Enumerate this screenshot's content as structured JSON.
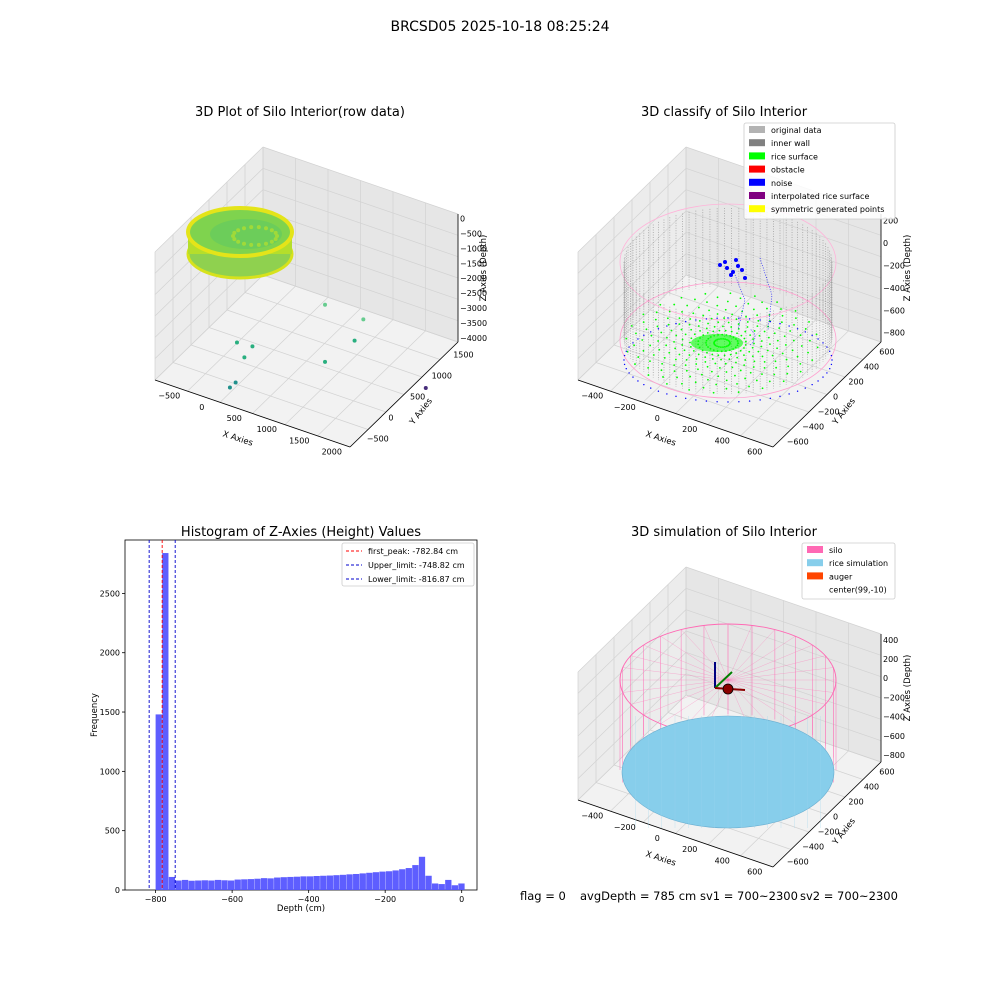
{
  "figure": {
    "suptitle": "BRCSD05 2025-10-18 08:25:24",
    "footer": {
      "flag": "flag = 0",
      "avg_depth": "avgDepth = 785 cm",
      "sv1": "sv1 = 700~2300",
      "sv2": "sv2 = 700~2300"
    }
  },
  "colors": {
    "original_data": "#b3b3b3",
    "inner_wall": "#808080",
    "rice_surface": "#00ff00",
    "obstacle": "#ff0000",
    "noise": "#0000ff",
    "interpolated_rice_surface": "#800080",
    "symmetric_generated_points": "#ffff00",
    "silo": "#ff69b4",
    "rice_simulation": "#87ceeb",
    "auger": "#ff4500",
    "hist_bar": "#5555ff",
    "first_peak_line": "#ff0000",
    "limit_line": "#0000cc",
    "viridis_low": "#3b528b",
    "viridis_mid": "#21918c",
    "viridis_high": "#fde725"
  },
  "chart_data": [
    {
      "type": "scatter",
      "projection": "3d",
      "title": "3D Plot of Silo Interior(row data)",
      "xlabel": "X Axies",
      "ylabel": "Y Axies",
      "zlabel": "Z Axies (Depth)",
      "xticks": [
        "−500",
        "0",
        "500",
        "1000",
        "1500",
        "2000"
      ],
      "yticks": [
        "−500",
        "0",
        "500",
        "1000",
        "1500"
      ],
      "zticks": [
        "0",
        "−500",
        "−1000",
        "−1500",
        "−2000",
        "−2500",
        "−3000",
        "−3500",
        "−4000"
      ],
      "xlim": [
        -700,
        2200
      ],
      "ylim": [
        -700,
        1600
      ],
      "zlim": [
        -4100,
        100
      ],
      "colormap": "viridis",
      "points": [
        {
          "x": 1200,
          "y": 200,
          "z": -1000
        },
        {
          "x": 1700,
          "y": 300,
          "z": -1200
        },
        {
          "x": 1500,
          "y": 400,
          "z": -2000
        },
        {
          "x": 1200,
          "y": 200,
          "z": -2500
        },
        {
          "x": 400,
          "y": -200,
          "z": -2100
        },
        {
          "x": 350,
          "y": -300,
          "z": -2300
        },
        {
          "x": 100,
          "y": -100,
          "z": -2300
        },
        {
          "x": 150,
          "y": -200,
          "z": -3200
        },
        {
          "x": 100,
          "y": -250,
          "z": -3300
        },
        {
          "x": 2000,
          "y": 1200,
          "z": -3900
        }
      ]
    },
    {
      "type": "scatter",
      "projection": "3d",
      "title": "3D classify of Silo Interior",
      "xlabel": "X Axies",
      "ylabel": "Y Axies",
      "zlabel": "Z Axies (Depth)",
      "xticks": [
        "−400",
        "−200",
        "0",
        "200",
        "400",
        "600"
      ],
      "yticks": [
        "−600",
        "−400",
        "−200",
        "0",
        "200",
        "400",
        "600"
      ],
      "zticks": [
        "200",
        "0",
        "−200",
        "−400",
        "−600",
        "−800"
      ],
      "xlim": [
        -550,
        700
      ],
      "ylim": [
        -700,
        700
      ],
      "zlim": [
        -950,
        250
      ],
      "legend": [
        "original data",
        "inner wall",
        "rice surface",
        "obstacle",
        "noise",
        "interpolated rice surface",
        "symmetric generated points"
      ],
      "legend_position": "upper-right"
    },
    {
      "type": "bar",
      "title": "Histogram of Z-Axies (Height) Values",
      "xlabel": "Depth (cm)",
      "ylabel": "Frequency",
      "xticks": [
        "−800",
        "−600",
        "−400",
        "−200",
        "0"
      ],
      "yticks": [
        "0",
        "500",
        "1000",
        "1500",
        "2000",
        "2500"
      ],
      "xlim": [
        -880,
        40
      ],
      "ylim": [
        0,
        2950
      ],
      "bin_width": 17.2,
      "bin_start": -800,
      "values": [
        1480,
        2840,
        110,
        80,
        85,
        78,
        80,
        82,
        80,
        85,
        82,
        80,
        88,
        90,
        92,
        95,
        100,
        98,
        105,
        108,
        110,
        112,
        115,
        115,
        118,
        120,
        122,
        125,
        128,
        132,
        135,
        140,
        145,
        150,
        155,
        158,
        165,
        175,
        185,
        210,
        280,
        120,
        55,
        50,
        85,
        40,
        55
      ],
      "vlines": [
        {
          "label": "first_peak: -782.84 cm",
          "x": -782.84
        },
        {
          "label": "Upper_limit: -748.82 cm",
          "x": -748.82
        },
        {
          "label": "Lower_limit: -816.87 cm",
          "x": -816.87
        }
      ],
      "legend_position": "upper-right"
    },
    {
      "type": "surface",
      "projection": "3d",
      "title": "3D simulation of Silo Interior",
      "xlabel": "X Axies",
      "ylabel": "Y Axies",
      "zlabel": "Z Axies (Depth)",
      "xticks": [
        "−400",
        "−200",
        "0",
        "200",
        "400",
        "600"
      ],
      "yticks": [
        "−600",
        "−400",
        "−200",
        "0",
        "200",
        "400",
        "600"
      ],
      "zticks": [
        "400",
        "200",
        "0",
        "−200",
        "−400",
        "−600",
        "−800"
      ],
      "xlim": [
        -550,
        700
      ],
      "ylim": [
        -700,
        700
      ],
      "zlim": [
        -950,
        450
      ],
      "legend": [
        "silo",
        "rice simulation",
        "auger",
        "center(99,-10)"
      ],
      "legend_position": "upper-right"
    }
  ]
}
